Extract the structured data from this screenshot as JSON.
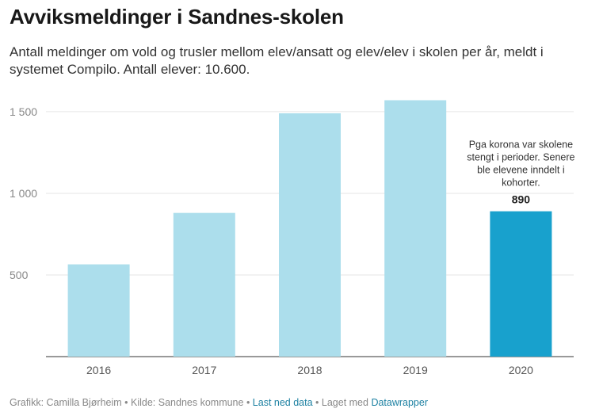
{
  "header": {
    "title": "Avviksmeldinger i Sandnes-skolen",
    "subtitle": "Antall meldinger om vold og trusler mellom elev/ansatt og elev/elev i skolen per år, meldt i systemet Compilo. Antall elever: 10.600."
  },
  "chart_data": {
    "type": "bar",
    "title": "Avviksmeldinger i Sandnes-skolen",
    "categories": [
      "2016",
      "2017",
      "2018",
      "2019",
      "2020"
    ],
    "values": [
      565,
      880,
      1490,
      1570,
      890
    ],
    "ylim": [
      0,
      1650
    ],
    "yticks": [
      500,
      1000,
      1500
    ],
    "ytick_labels": [
      "500",
      "1 000",
      "1 500"
    ],
    "xlabel": "",
    "ylabel": "",
    "grid": true,
    "highlight_index": 4,
    "highlight_label": "890",
    "annotation_lines": [
      "Pga korona var skolene",
      "stengt i perioder. Senere",
      "ble elevene inndelt i",
      "kohorter."
    ],
    "colors": {
      "default": "#acdeec",
      "highlight": "#18a1cd"
    }
  },
  "footer": {
    "credit": "Grafikk: Camilla Bjørheim",
    "sep1": " • ",
    "source": "Kilde: Sandnes kommune",
    "sep2": " • ",
    "download_link": "Last ned data",
    "sep3": " • ",
    "made_with": "Laget med ",
    "tool_link": "Datawrapper"
  }
}
